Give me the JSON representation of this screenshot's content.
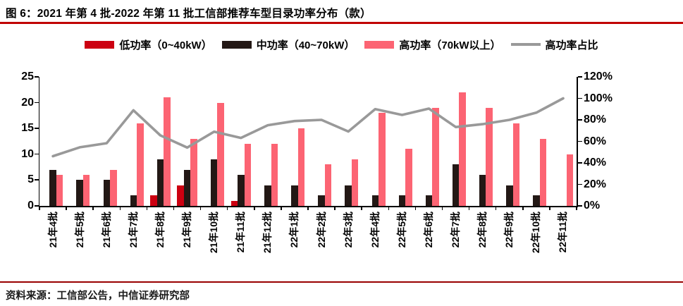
{
  "title": "图 6：2021 年第 4 批-2022 年第 11 批工信部推荐车型目录功率分布（款）",
  "source": "资料来源：工信部公告，中信证券研究部",
  "colors": {
    "title_rule": "#C00000",
    "footer_rule": "#990000",
    "low_power": "#CC0011",
    "mid_power": "#231815",
    "high_power": "#FC6473",
    "share_line": "#999999",
    "axis": "#000000"
  },
  "legend": [
    {
      "label": "低功率（0~40kW）",
      "type": "bar",
      "color": "#CC0011"
    },
    {
      "label": "中功率（40~70kW）",
      "type": "bar",
      "color": "#231815"
    },
    {
      "label": "高功率（70kW以上）",
      "type": "bar",
      "color": "#FC6473"
    },
    {
      "label": "高功率占比",
      "type": "line",
      "color": "#999999"
    }
  ],
  "chart_data": {
    "type": "bar+line",
    "title": "2021年第4批-2022年第11批工信部推荐车型目录功率分布（款）",
    "categories": [
      "21年4批",
      "21年5批",
      "21年6批",
      "21年7批",
      "21年8批",
      "21年9批",
      "21年10批",
      "21年11批",
      "21年12批",
      "22年1批",
      "22年2批",
      "22年3批",
      "22年4批",
      "22年5批",
      "22年6批",
      "22年7批",
      "22年8批",
      "22年9批",
      "22年10批",
      "22年11批"
    ],
    "series": [
      {
        "name": "低功率（0~40kW）",
        "key": "low-power",
        "color": "#CC0011",
        "values": [
          0,
          0,
          0,
          0,
          2,
          4,
          0,
          1,
          0,
          0,
          0,
          0,
          0,
          0,
          0,
          0,
          0,
          0,
          0,
          0
        ]
      },
      {
        "name": "中功率（40~70kW）",
        "key": "mid-power",
        "color": "#231815",
        "values": [
          7,
          5,
          5,
          2,
          9,
          7,
          9,
          6,
          4,
          4,
          2,
          4,
          2,
          2,
          2,
          8,
          6,
          4,
          2,
          0
        ]
      },
      {
        "name": "高功率（70kW以上）",
        "key": "high-power",
        "color": "#FC6473",
        "values": [
          6,
          6,
          7,
          16,
          21,
          13,
          20,
          12,
          12,
          15,
          8,
          9,
          18,
          11,
          19,
          22,
          19,
          16,
          13,
          10
        ]
      }
    ],
    "line_series": {
      "name": "高功率占比",
      "color": "#999999",
      "values_pct": [
        46.2,
        54.5,
        58.3,
        88.9,
        65.6,
        54.2,
        69.0,
        63.2,
        75.0,
        78.9,
        80.0,
        69.2,
        90.0,
        84.6,
        90.5,
        73.3,
        76.0,
        80.0,
        86.7,
        100.0
      ]
    },
    "left_axis": {
      "min": 0,
      "max": 25,
      "tick_labels": [
        "0",
        "5",
        "10",
        "15",
        "20",
        "25"
      ]
    },
    "right_axis": {
      "min_pct": 0,
      "max_pct": 120,
      "tick_labels": [
        "0%",
        "20%",
        "40%",
        "60%",
        "80%",
        "100%",
        "120%"
      ]
    },
    "grid": "off",
    "legend_position": "top-center"
  }
}
